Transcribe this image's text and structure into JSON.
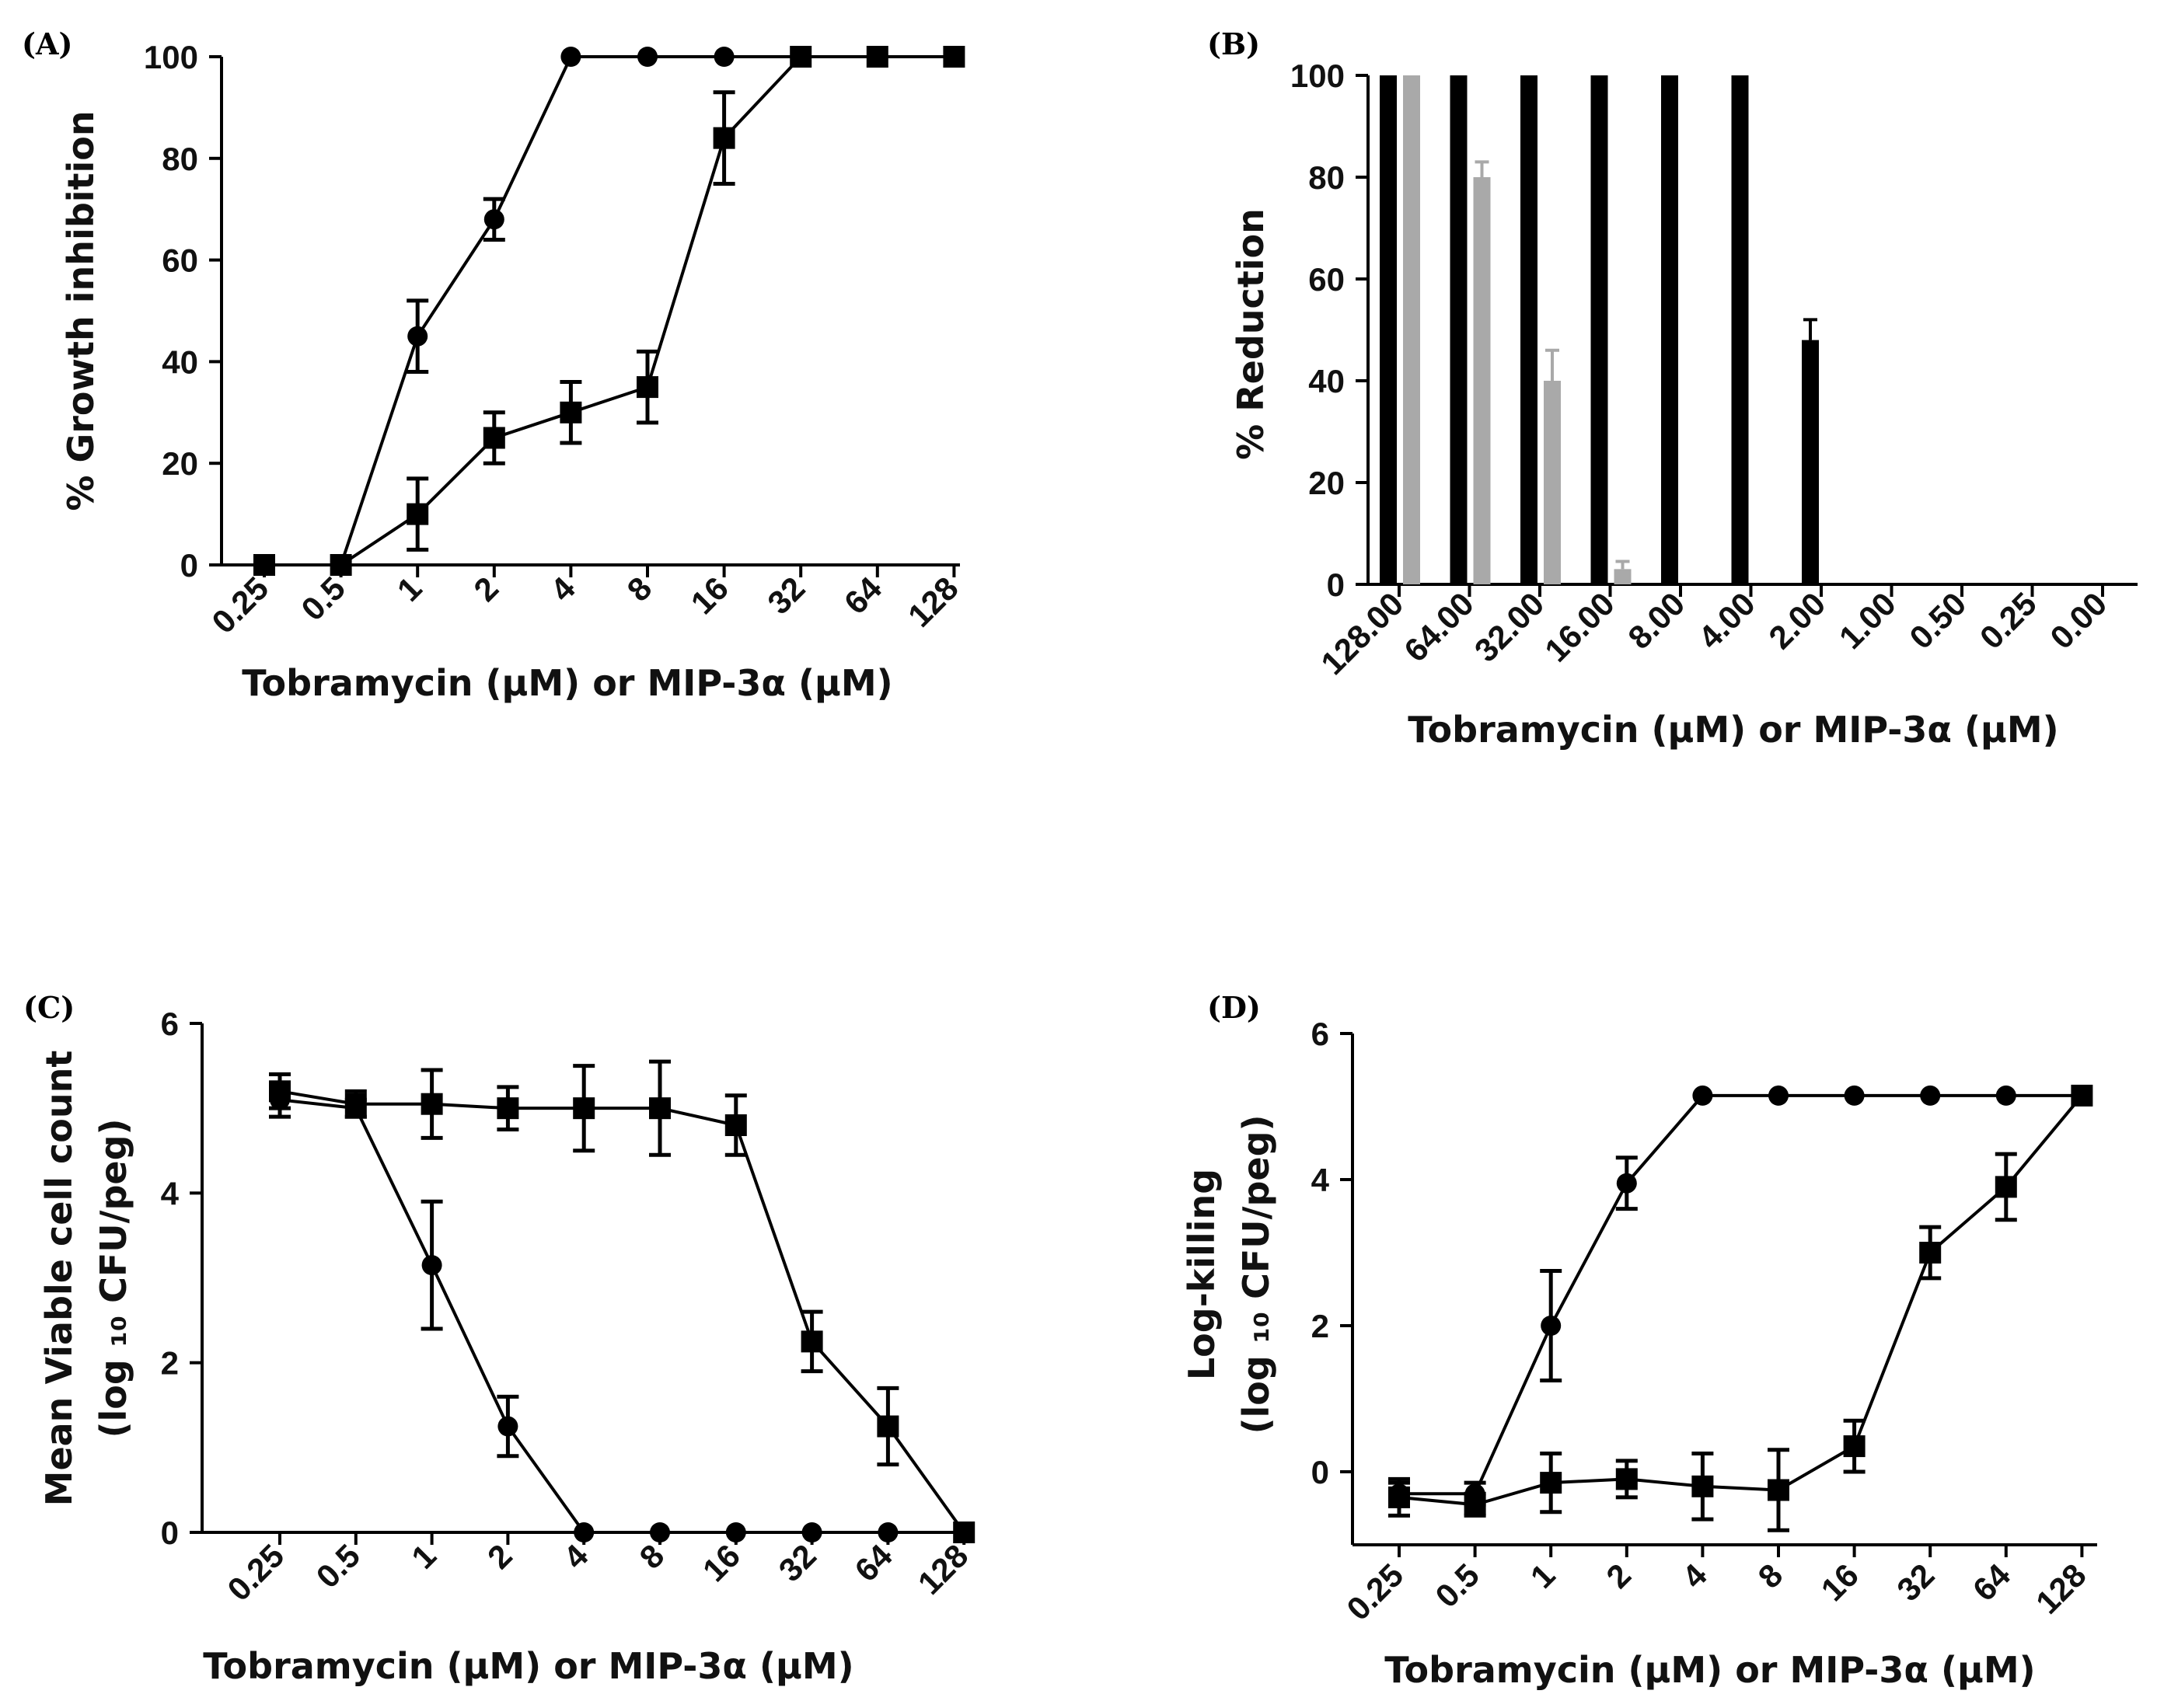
{
  "chart_data": [
    {
      "id": "A",
      "type": "line",
      "panel_label": "(A)",
      "title": "",
      "xlabel": "Tobramycin (μM) or MIP-3α (μM)",
      "ylabel": "% Growth inhibition",
      "categories": [
        "0.25",
        "0.5",
        "1",
        "2",
        "4",
        "8",
        "16",
        "32",
        "64",
        "128"
      ],
      "ylim": [
        0,
        100
      ],
      "yticks": [
        "0",
        "20",
        "40",
        "60",
        "80",
        "100"
      ],
      "grid": false,
      "series": [
        {
          "name": "circles",
          "marker": "circle",
          "values": [
            null,
            0,
            45,
            68,
            100,
            100,
            100,
            100,
            null,
            null
          ],
          "errors": [
            null,
            0,
            7,
            4,
            0,
            0,
            0,
            0,
            null,
            null
          ]
        },
        {
          "name": "squares",
          "marker": "square",
          "values": [
            0,
            0,
            10,
            25,
            30,
            35,
            84,
            100,
            100,
            100
          ],
          "errors": [
            0,
            0,
            7,
            5,
            6,
            7,
            9,
            0,
            0,
            0
          ]
        }
      ]
    },
    {
      "id": "B",
      "type": "bar",
      "panel_label": "(B)",
      "title": "",
      "xlabel": "Tobramycin (μM) or MIP-3α (μM)",
      "ylabel": "% Reduction",
      "categories": [
        "128.00",
        "64.00",
        "32.00",
        "16.00",
        "8.00",
        "4.00",
        "2.00",
        "1.00",
        "0.50",
        "0.25",
        "0.00"
      ],
      "ylim": [
        0,
        100
      ],
      "yticks": [
        "0",
        "20",
        "40",
        "60",
        "80",
        "100"
      ],
      "grid": false,
      "series": [
        {
          "name": "black",
          "color": "#000000",
          "values": [
            100,
            100,
            100,
            100,
            100,
            100,
            48,
            0,
            0,
            0,
            0
          ],
          "errors": [
            0,
            0,
            0,
            0,
            0,
            0,
            4,
            0,
            0,
            0,
            0
          ]
        },
        {
          "name": "grey",
          "color": "#a9a9a9",
          "values": [
            100,
            80,
            40,
            3,
            0,
            0,
            0,
            0,
            0,
            0,
            0
          ],
          "errors": [
            0,
            3,
            6,
            1.5,
            0,
            0,
            0,
            0,
            0,
            0,
            0
          ]
        }
      ]
    },
    {
      "id": "C",
      "type": "line",
      "panel_label": "(C)",
      "title": "",
      "xlabel": "Tobramycin (μM) or MIP-3α (μM)",
      "ylabel_line1": "Mean Viable cell count",
      "ylabel_line2": "(log ₁₀ CFU/peg)",
      "categories": [
        "0.25",
        "0.5",
        "1",
        "2",
        "4",
        "8",
        "16",
        "32",
        "64",
        "128"
      ],
      "ylim": [
        0,
        6
      ],
      "yticks": [
        "0",
        "2",
        "4",
        "6"
      ],
      "grid": false,
      "series": [
        {
          "name": "circles",
          "marker": "circle",
          "values": [
            5.1,
            5.0,
            3.15,
            1.25,
            0,
            0,
            0,
            0,
            0,
            null
          ],
          "errors": [
            0.2,
            0.1,
            0.75,
            0.35,
            0,
            0,
            0,
            0,
            0,
            null
          ]
        },
        {
          "name": "squares",
          "marker": "square",
          "values": [
            5.2,
            5.05,
            5.05,
            5.0,
            5.0,
            5.0,
            4.8,
            2.25,
            1.25,
            0
          ],
          "errors": [
            0.2,
            0.15,
            0.4,
            0.25,
            0.5,
            0.55,
            0.35,
            0.35,
            0.45,
            0
          ]
        }
      ]
    },
    {
      "id": "D",
      "type": "line",
      "panel_label": "(D)",
      "title": "",
      "xlabel": "Tobramycin (μM) or MIP-3α (μM)",
      "ylabel_line1": "Log-killing",
      "ylabel_line2": "(log ₁₀ CFU/peg)",
      "categories": [
        "0.25",
        "0.5",
        "1",
        "2",
        "4",
        "8",
        "16",
        "32",
        "64",
        "128"
      ],
      "ylim": [
        -1,
        6
      ],
      "yticks": [
        "0",
        "2",
        "4",
        "6"
      ],
      "grid": false,
      "series": [
        {
          "name": "circles",
          "marker": "circle",
          "values": [
            -0.3,
            -0.3,
            2.0,
            3.95,
            5.15,
            5.15,
            5.15,
            5.15,
            5.15,
            5.15
          ],
          "errors": [
            0.15,
            0.15,
            0.75,
            0.35,
            0,
            0,
            0,
            0,
            0,
            0
          ]
        },
        {
          "name": "squares",
          "marker": "square",
          "values": [
            -0.35,
            -0.45,
            -0.15,
            -0.1,
            -0.2,
            -0.25,
            0.35,
            3.0,
            3.9,
            5.15
          ],
          "errors": [
            0.25,
            0.15,
            0.4,
            0.25,
            0.45,
            0.55,
            0.35,
            0.35,
            0.45,
            0
          ]
        }
      ]
    }
  ]
}
